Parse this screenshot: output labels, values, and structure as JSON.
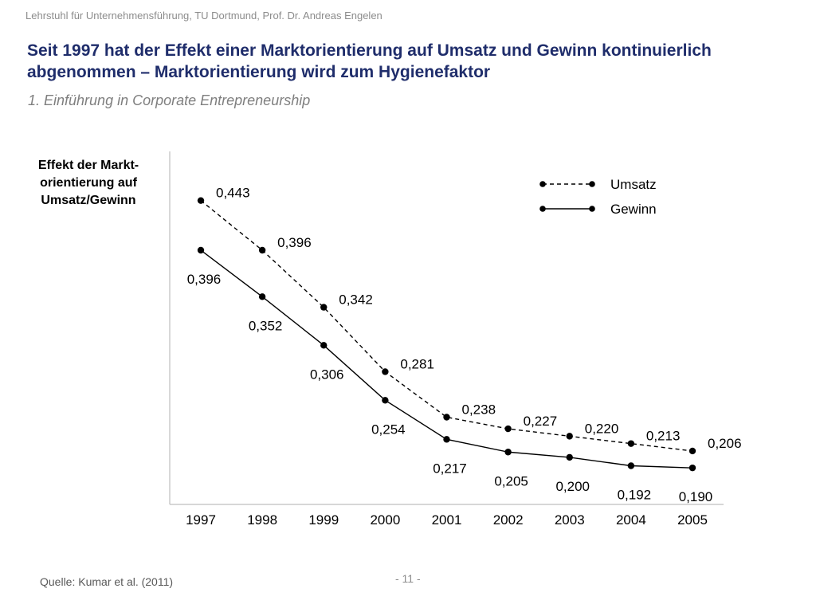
{
  "header": {
    "text": "Lehrstuhl für Unternehmensführung, TU Dortmund,  Prof. Dr. Andreas Engelen"
  },
  "title": {
    "line1": "Seit 1997 hat der Effekt einer Marktorientierung auf Umsatz und Gewinn kontinuierlich",
    "line2": "abgenommen – Marktorientierung wird zum Hygienefaktor"
  },
  "subtitle": "1. Einführung in Corporate Entrepreneurship",
  "colors": {
    "title": "#1f2d6b",
    "header": "#8c8c8c",
    "subtitle": "#7f7f7f",
    "series": "#000000",
    "axis": "#bfbfbf"
  },
  "chart_data": {
    "type": "line",
    "title": "",
    "ylabel_lines": [
      "Effekt der Markt-",
      "orientierung auf",
      "Umsatz/Gewinn"
    ],
    "xlabel": "",
    "x": [
      "1997",
      "1998",
      "1999",
      "2000",
      "2001",
      "2002",
      "2003",
      "2004",
      "2005"
    ],
    "ylim": [
      0.1,
      0.45
    ],
    "grid": false,
    "legend_position": "top-right",
    "series": [
      {
        "name": "Umsatz",
        "line_style": "dashed",
        "values": [
          0.443,
          0.396,
          0.342,
          0.281,
          0.238,
          0.227,
          0.22,
          0.213,
          0.206
        ],
        "labels": [
          "0,443",
          "0,396",
          "0,342",
          "0,281",
          "0,238",
          "0,227",
          "0,220",
          "0,213",
          "0,206"
        ],
        "label_position": "above-right"
      },
      {
        "name": "Gewinn",
        "line_style": "solid",
        "values": [
          0.396,
          0.352,
          0.306,
          0.254,
          0.217,
          0.205,
          0.2,
          0.192,
          0.19
        ],
        "labels": [
          "0,396",
          "0,352",
          "0,306",
          "0,254",
          "0,217",
          "0,205",
          "0,200",
          "0,192",
          "0,190"
        ],
        "label_position": "below"
      }
    ]
  },
  "footer": {
    "source": "Quelle: Kumar et al. (2011)",
    "page": "- 11 -"
  }
}
